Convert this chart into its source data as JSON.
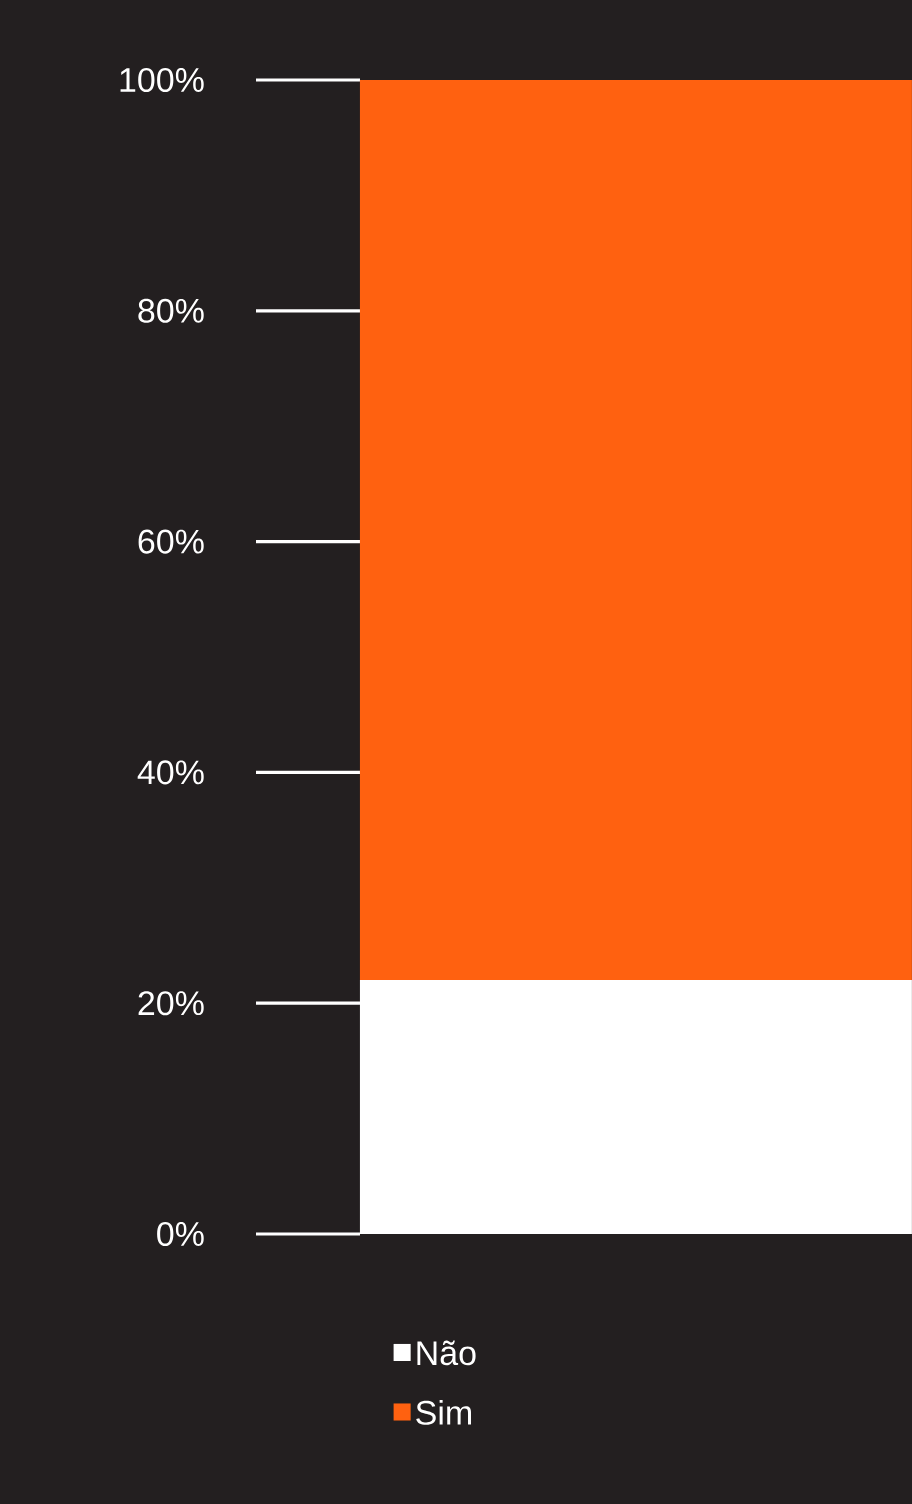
{
  "chart_data": {
    "type": "bar",
    "stacked": true,
    "categories": [
      null
    ],
    "series": [
      {
        "name": "Não",
        "color": "#ffffff",
        "values": [
          22
        ]
      },
      {
        "name": "Sim",
        "color": "#ff6110",
        "values": [
          78
        ]
      }
    ],
    "ylim": [
      0,
      100
    ],
    "yticks": [
      {
        "value": 0,
        "label": "0%"
      },
      {
        "value": 20,
        "label": "20%"
      },
      {
        "value": 40,
        "label": "40%"
      },
      {
        "value": 60,
        "label": "60%"
      },
      {
        "value": 80,
        "label": "80%"
      },
      {
        "value": 100,
        "label": "100%"
      }
    ],
    "tick_labels": "y",
    "legend": "bottom"
  }
}
